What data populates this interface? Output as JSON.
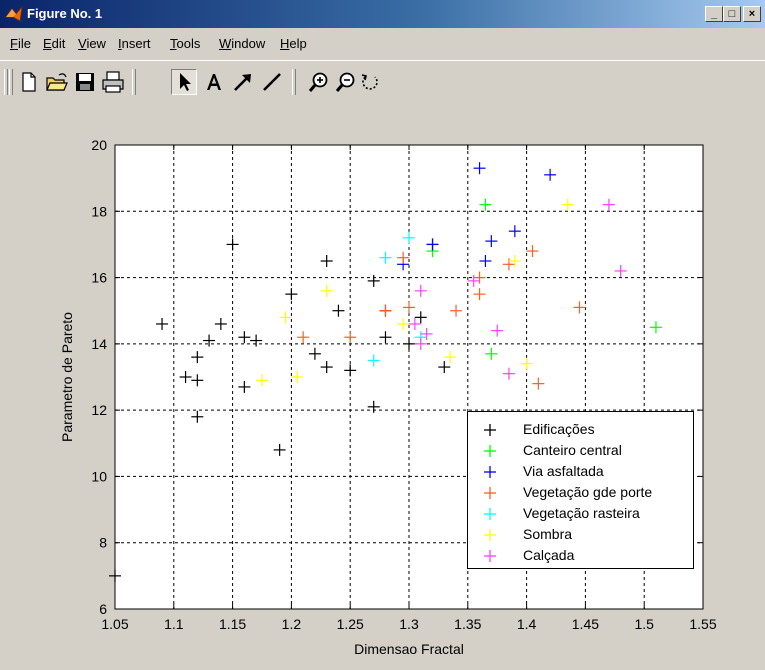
{
  "window": {
    "title": "Figure No. 1",
    "minimize_label": "_",
    "maximize_label": "□",
    "close_label": "×"
  },
  "menu": {
    "items": [
      {
        "label": "File"
      },
      {
        "label": "Edit"
      },
      {
        "label": "View"
      },
      {
        "label": "Insert"
      },
      {
        "label": "Tools"
      },
      {
        "label": "Window"
      },
      {
        "label": "Help"
      }
    ]
  },
  "toolbar": {
    "buttons": [
      {
        "icon": "new-file-icon"
      },
      {
        "icon": "open-folder-icon"
      },
      {
        "icon": "save-icon"
      },
      {
        "icon": "print-icon"
      },
      {
        "icon": "select-arrow-icon",
        "pressed": true
      },
      {
        "icon": "insert-text-icon"
      },
      {
        "icon": "insert-arrow-icon"
      },
      {
        "icon": "insert-line-icon"
      },
      {
        "icon": "zoom-in-icon"
      },
      {
        "icon": "zoom-out-icon"
      },
      {
        "icon": "rotate-3d-icon"
      }
    ]
  },
  "chart_data": {
    "type": "scatter",
    "title": "",
    "xlabel": "Dimensao Fractal",
    "ylabel": "Parametro de Pareto",
    "xlim": [
      1.05,
      1.55
    ],
    "ylim": [
      6,
      20
    ],
    "xticks": [
      "1.05",
      "1.1",
      "1.15",
      "1.2",
      "1.25",
      "1.3",
      "1.35",
      "1.4",
      "1.45",
      "1.5",
      "1.55"
    ],
    "yticks": [
      "6",
      "8",
      "10",
      "12",
      "14",
      "16",
      "18",
      "20"
    ],
    "grid": true,
    "legend_position": "bottom-right",
    "marker": "+",
    "series": [
      {
        "name": "Edificações",
        "color": "#000000",
        "points": [
          [
            1.05,
            7.0
          ],
          [
            1.09,
            14.6
          ],
          [
            1.11,
            13.0
          ],
          [
            1.12,
            13.6
          ],
          [
            1.12,
            12.9
          ],
          [
            1.12,
            11.8
          ],
          [
            1.13,
            14.1
          ],
          [
            1.14,
            14.6
          ],
          [
            1.15,
            17.0
          ],
          [
            1.16,
            14.2
          ],
          [
            1.16,
            12.7
          ],
          [
            1.17,
            14.1
          ],
          [
            1.19,
            10.8
          ],
          [
            1.2,
            15.5
          ],
          [
            1.22,
            13.7
          ],
          [
            1.23,
            16.5
          ],
          [
            1.23,
            13.3
          ],
          [
            1.24,
            15.0
          ],
          [
            1.25,
            13.2
          ],
          [
            1.27,
            15.9
          ],
          [
            1.27,
            12.1
          ],
          [
            1.28,
            15.0
          ],
          [
            1.28,
            14.2
          ],
          [
            1.3,
            14.0
          ],
          [
            1.31,
            14.8
          ],
          [
            1.33,
            13.3
          ],
          [
            1.32,
            17.0
          ]
        ]
      },
      {
        "name": "Canteiro central",
        "color": "#00ff00",
        "points": [
          [
            1.32,
            16.8
          ],
          [
            1.365,
            18.2
          ],
          [
            1.37,
            13.7
          ],
          [
            1.51,
            14.5
          ]
        ]
      },
      {
        "name": "Via asfaltada",
        "color": "#0000ff",
        "points": [
          [
            1.36,
            19.3
          ],
          [
            1.42,
            19.1
          ],
          [
            1.39,
            17.4
          ],
          [
            1.37,
            17.1
          ],
          [
            1.32,
            17.0
          ],
          [
            1.295,
            16.4
          ],
          [
            1.365,
            16.5
          ]
        ]
      },
      {
        "name": "Vegetação gde porte",
        "color": "#ff6020",
        "points": [
          [
            1.21,
            14.2
          ],
          [
            1.25,
            14.2
          ],
          [
            1.28,
            15.0
          ],
          [
            1.295,
            16.6
          ],
          [
            1.3,
            15.1
          ],
          [
            1.34,
            15.0
          ],
          [
            1.36,
            16.0
          ],
          [
            1.36,
            15.5
          ],
          [
            1.385,
            16.4
          ],
          [
            1.405,
            16.8
          ],
          [
            1.41,
            12.8
          ],
          [
            1.445,
            15.1
          ]
        ]
      },
      {
        "name": "Vegetação rasteira",
        "color": "#00ffff",
        "points": [
          [
            1.3,
            17.2
          ],
          [
            1.28,
            16.6
          ],
          [
            1.27,
            13.5
          ],
          [
            1.31,
            14.2
          ]
        ]
      },
      {
        "name": "Sombra",
        "color": "#ffff00",
        "points": [
          [
            1.175,
            12.9
          ],
          [
            1.195,
            14.8
          ],
          [
            1.205,
            13.0
          ],
          [
            1.23,
            15.6
          ],
          [
            1.295,
            14.6
          ],
          [
            1.335,
            13.6
          ],
          [
            1.39,
            16.5
          ],
          [
            1.4,
            13.4
          ],
          [
            1.435,
            18.2
          ]
        ]
      },
      {
        "name": "Calçada",
        "color": "#ff40ff",
        "points": [
          [
            1.31,
            15.6
          ],
          [
            1.305,
            14.6
          ],
          [
            1.31,
            14.0
          ],
          [
            1.315,
            14.3
          ],
          [
            1.355,
            15.9
          ],
          [
            1.375,
            14.4
          ],
          [
            1.385,
            13.1
          ],
          [
            1.47,
            18.2
          ],
          [
            1.48,
            16.2
          ]
        ]
      }
    ]
  }
}
